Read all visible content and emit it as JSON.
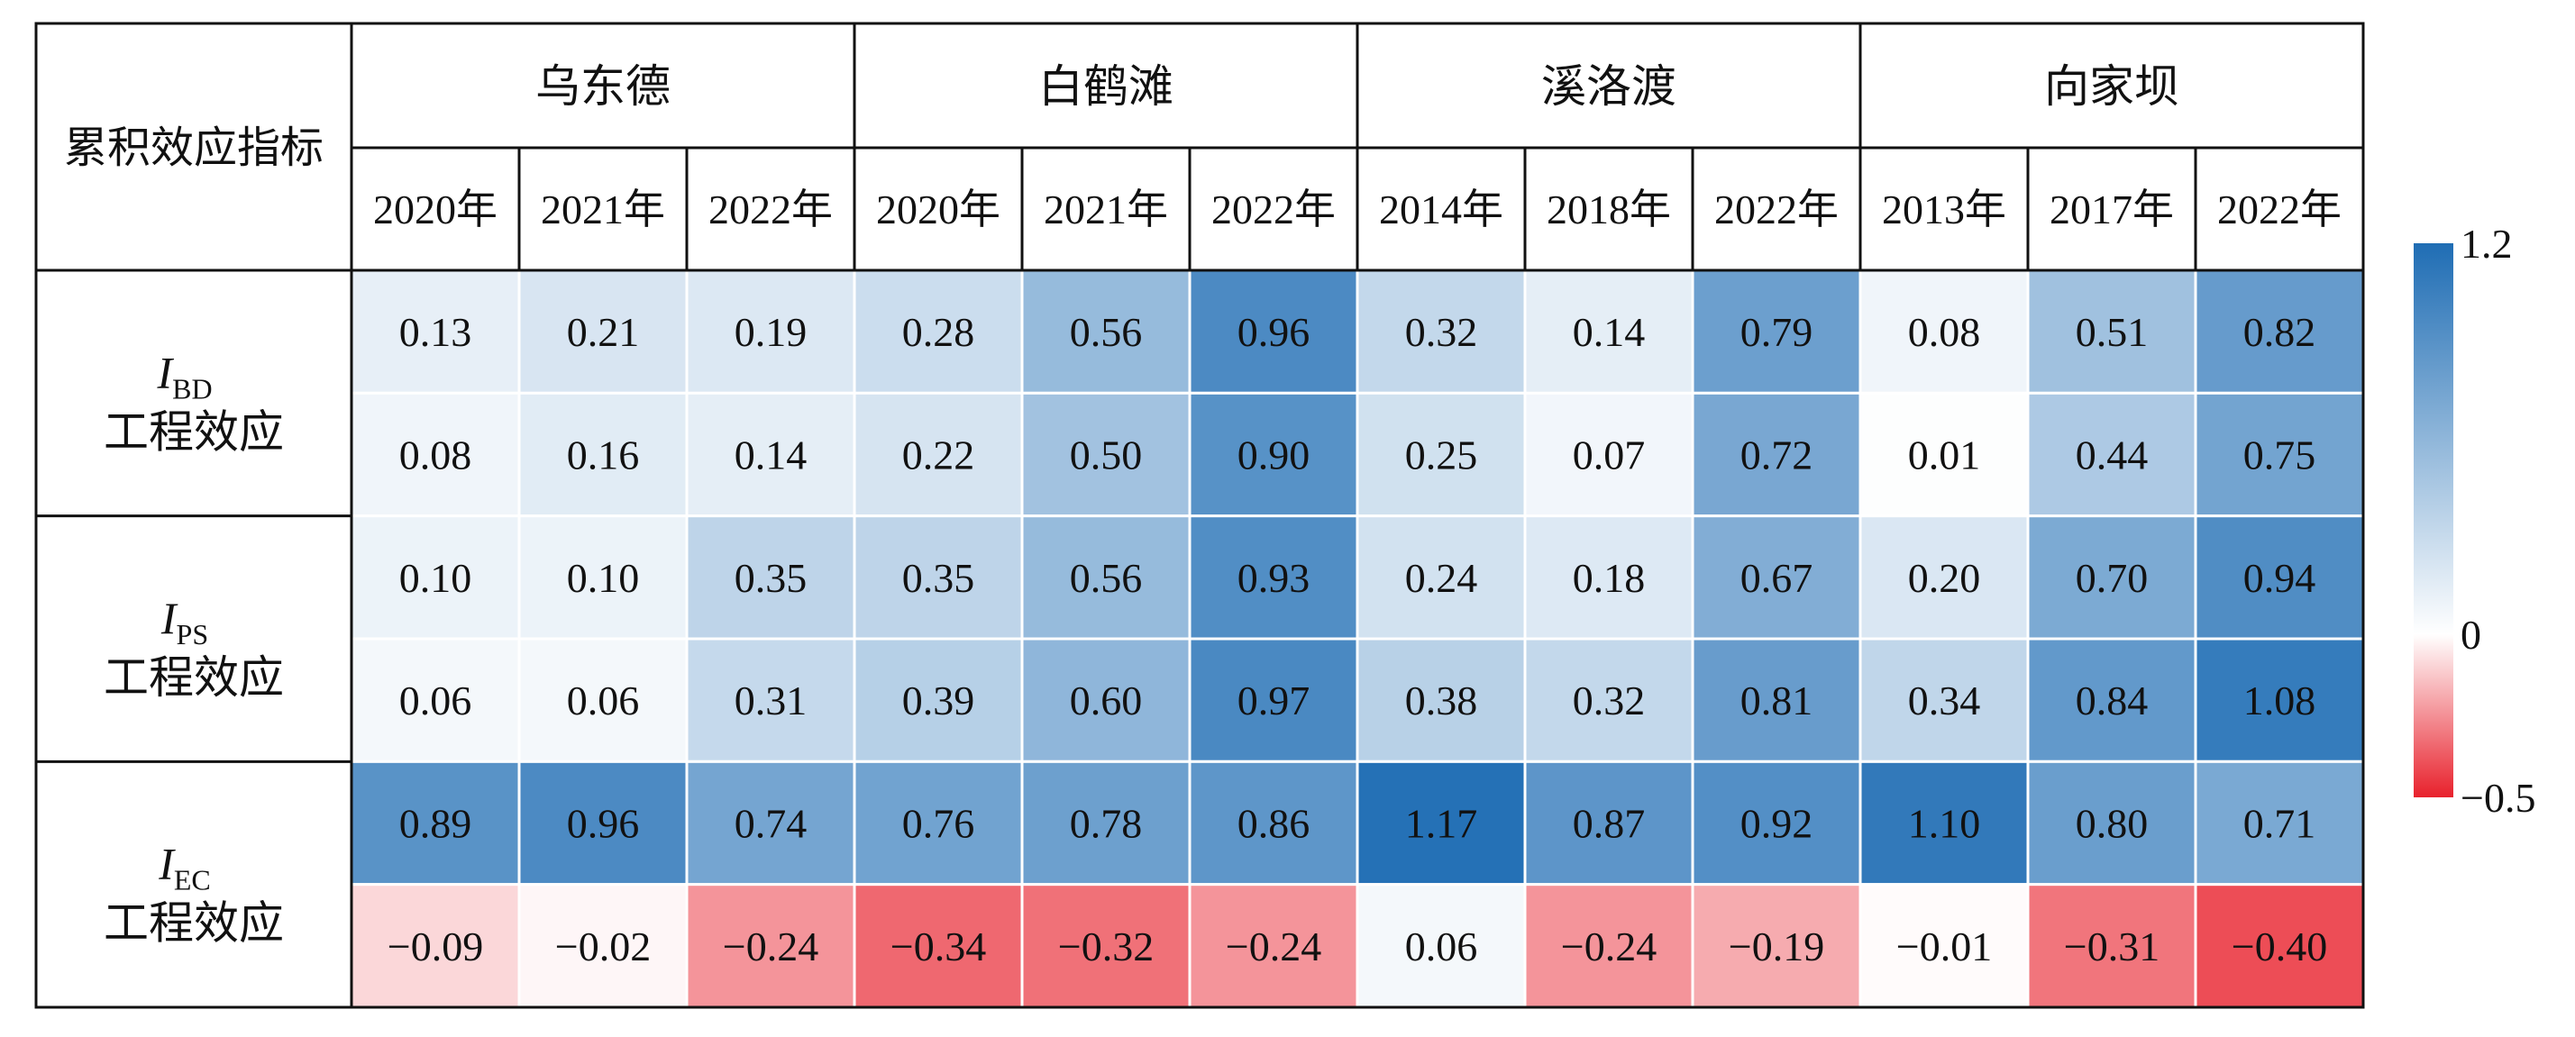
{
  "chart_data": {
    "type": "heatmap",
    "corner_label": "累积效应指标",
    "groups": [
      {
        "name": "乌东德",
        "years": [
          "2020年",
          "2021年",
          "2022年"
        ]
      },
      {
        "name": "白鹤滩",
        "years": [
          "2020年",
          "2021年",
          "2022年"
        ]
      },
      {
        "name": "溪洛渡",
        "years": [
          "2014年",
          "2018年",
          "2022年"
        ]
      },
      {
        "name": "向家坝",
        "years": [
          "2013年",
          "2017年",
          "2022年"
        ]
      }
    ],
    "row_groups": [
      {
        "symbol": "I",
        "subscript": "BD",
        "label": "工程效应"
      },
      {
        "symbol": "I",
        "subscript": "PS",
        "label": "工程效应"
      },
      {
        "symbol": "I",
        "subscript": "EC",
        "label": "工程效应"
      }
    ],
    "rows": [
      {
        "values": [
          0.13,
          0.21,
          0.19,
          0.28,
          0.56,
          0.96,
          0.32,
          0.14,
          0.79,
          0.08,
          0.51,
          0.82
        ],
        "labels": [
          "0.13",
          "0.21",
          "0.19",
          "0.28",
          "0.56",
          "0.96",
          "0.32",
          "0.14",
          "0.79",
          "0.08",
          "0.51",
          "0.82"
        ]
      },
      {
        "values": [
          0.08,
          0.16,
          0.14,
          0.22,
          0.5,
          0.9,
          0.25,
          0.07,
          0.72,
          0.01,
          0.44,
          0.75
        ],
        "labels": [
          "0.08",
          "0.16",
          "0.14",
          "0.22",
          "0.50",
          "0.90",
          "0.25",
          "0.07",
          "0.72",
          "0.01",
          "0.44",
          "0.75"
        ]
      },
      {
        "values": [
          0.1,
          0.1,
          0.35,
          0.35,
          0.56,
          0.93,
          0.24,
          0.18,
          0.67,
          0.2,
          0.7,
          0.94
        ],
        "labels": [
          "0.10",
          "0.10",
          "0.35",
          "0.35",
          "0.56",
          "0.93",
          "0.24",
          "0.18",
          "0.67",
          "0.20",
          "0.70",
          "0.94"
        ]
      },
      {
        "values": [
          0.06,
          0.06,
          0.31,
          0.39,
          0.6,
          0.97,
          0.38,
          0.32,
          0.81,
          0.34,
          0.84,
          1.08
        ],
        "labels": [
          "0.06",
          "0.06",
          "0.31",
          "0.39",
          "0.60",
          "0.97",
          "0.38",
          "0.32",
          "0.81",
          "0.34",
          "0.84",
          "1.08"
        ]
      },
      {
        "values": [
          0.89,
          0.96,
          0.74,
          0.76,
          0.78,
          0.86,
          1.17,
          0.87,
          0.92,
          1.1,
          0.8,
          0.71
        ],
        "labels": [
          "0.89",
          "0.96",
          "0.74",
          "0.76",
          "0.78",
          "0.86",
          "1.17",
          "0.87",
          "0.92",
          "1.10",
          "0.80",
          "0.71"
        ]
      },
      {
        "values": [
          -0.09,
          -0.02,
          -0.24,
          -0.34,
          -0.32,
          -0.24,
          0.06,
          -0.24,
          -0.19,
          -0.01,
          -0.31,
          -0.4
        ],
        "labels": [
          "−0.09",
          "−0.02",
          "−0.24",
          "−0.34",
          "−0.32",
          "−0.24",
          "0.06",
          "−0.24",
          "−0.19",
          "−0.01",
          "−0.31",
          "−0.40"
        ]
      }
    ],
    "colorbar": {
      "min": -0.5,
      "mid": 0,
      "max": 1.2,
      "tick_labels": [
        "1.2",
        "0",
        "−0.5"
      ],
      "colors": {
        "max": "#1f6db4",
        "mid": "#ffffff",
        "min": "#e8212c"
      }
    }
  }
}
